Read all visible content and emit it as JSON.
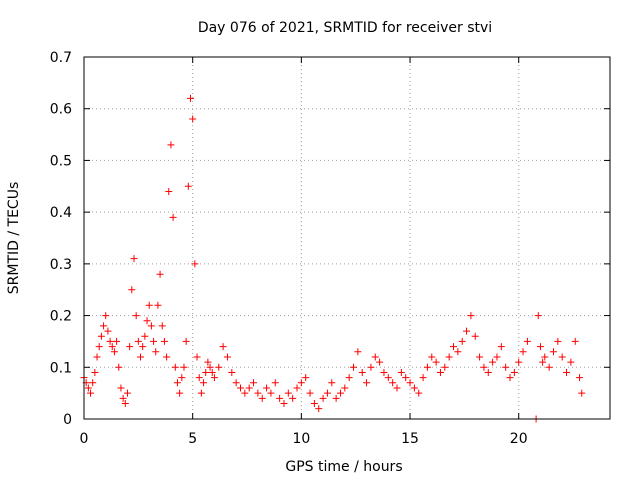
{
  "chart_data": {
    "type": "scatter",
    "title": "Day 076 of 2021, SRMTID for receiver stvi",
    "xlabel": "GPS time / hours",
    "ylabel": "SRMTID / TECUs",
    "xlim": [
      0,
      24.2
    ],
    "ylim": [
      0,
      0.7
    ],
    "x_ticks": [
      0,
      5,
      10,
      15,
      20
    ],
    "x_tick_labels": [
      "0",
      "5",
      "10",
      "15",
      "20"
    ],
    "y_ticks": [
      0,
      0.1,
      0.2,
      0.3,
      0.4,
      0.5,
      0.6,
      0.7
    ],
    "y_tick_labels": [
      "0",
      "0.1",
      "0.2",
      "0.3",
      "0.4",
      "0.5",
      "0.6",
      "0.7"
    ],
    "grid": true,
    "marker": "plus",
    "color": "#ff0000",
    "series": [
      {
        "name": "SRMTID",
        "x": [
          0.0,
          0.1,
          0.2,
          0.3,
          0.4,
          0.5,
          0.6,
          0.7,
          0.8,
          0.9,
          1.0,
          1.1,
          1.2,
          1.3,
          1.4,
          1.5,
          1.6,
          1.7,
          1.8,
          1.9,
          2.0,
          2.1,
          2.2,
          2.3,
          2.4,
          2.5,
          2.6,
          2.7,
          2.8,
          2.9,
          3.0,
          3.1,
          3.2,
          3.3,
          3.4,
          3.5,
          3.6,
          3.7,
          3.8,
          3.9,
          4.0,
          4.1,
          4.2,
          4.3,
          4.4,
          4.5,
          4.6,
          4.7,
          4.8,
          4.9,
          5.0,
          5.1,
          5.2,
          5.3,
          5.4,
          5.5,
          5.6,
          5.7,
          5.8,
          5.9,
          6.0,
          6.2,
          6.4,
          6.6,
          6.8,
          7.0,
          7.2,
          7.4,
          7.6,
          7.8,
          8.0,
          8.2,
          8.4,
          8.6,
          8.8,
          9.0,
          9.2,
          9.4,
          9.6,
          9.8,
          10.0,
          10.2,
          10.4,
          10.6,
          10.8,
          11.0,
          11.2,
          11.4,
          11.6,
          11.8,
          12.0,
          12.2,
          12.4,
          12.6,
          12.8,
          13.0,
          13.2,
          13.4,
          13.6,
          13.8,
          14.0,
          14.2,
          14.4,
          14.6,
          14.8,
          15.0,
          15.2,
          15.4,
          15.6,
          15.8,
          16.0,
          16.2,
          16.4,
          16.6,
          16.8,
          17.0,
          17.2,
          17.4,
          17.6,
          17.8,
          18.0,
          18.2,
          18.4,
          18.6,
          18.8,
          19.0,
          19.2,
          19.4,
          19.6,
          19.8,
          20.0,
          20.2,
          20.4,
          20.8,
          20.9,
          21.0,
          21.1,
          21.2,
          21.4,
          21.6,
          21.8,
          22.0,
          22.2,
          22.4,
          22.6,
          22.8,
          22.9
        ],
        "y": [
          0.08,
          0.07,
          0.06,
          0.05,
          0.07,
          0.09,
          0.12,
          0.14,
          0.16,
          0.18,
          0.2,
          0.17,
          0.15,
          0.14,
          0.13,
          0.15,
          0.1,
          0.06,
          0.04,
          0.03,
          0.05,
          0.14,
          0.25,
          0.31,
          0.2,
          0.15,
          0.12,
          0.14,
          0.16,
          0.19,
          0.22,
          0.18,
          0.15,
          0.13,
          0.22,
          0.28,
          0.18,
          0.15,
          0.12,
          0.44,
          0.53,
          0.39,
          0.1,
          0.07,
          0.05,
          0.08,
          0.1,
          0.15,
          0.45,
          0.62,
          0.58,
          0.3,
          0.12,
          0.08,
          0.05,
          0.07,
          0.09,
          0.11,
          0.1,
          0.09,
          0.08,
          0.1,
          0.14,
          0.12,
          0.09,
          0.07,
          0.06,
          0.05,
          0.06,
          0.07,
          0.05,
          0.04,
          0.06,
          0.05,
          0.07,
          0.04,
          0.03,
          0.05,
          0.04,
          0.06,
          0.07,
          0.08,
          0.05,
          0.03,
          0.02,
          0.04,
          0.05,
          0.07,
          0.04,
          0.05,
          0.06,
          0.08,
          0.1,
          0.13,
          0.09,
          0.07,
          0.1,
          0.12,
          0.11,
          0.09,
          0.08,
          0.07,
          0.06,
          0.09,
          0.08,
          0.07,
          0.06,
          0.05,
          0.08,
          0.1,
          0.12,
          0.11,
          0.09,
          0.1,
          0.12,
          0.14,
          0.13,
          0.15,
          0.17,
          0.2,
          0.16,
          0.12,
          0.1,
          0.09,
          0.11,
          0.12,
          0.14,
          0.1,
          0.08,
          0.09,
          0.11,
          0.13,
          0.15,
          0.0,
          0.2,
          0.14,
          0.11,
          0.12,
          0.1,
          0.13,
          0.15,
          0.12,
          0.09,
          0.11,
          0.15,
          0.08,
          0.05
        ]
      }
    ]
  }
}
